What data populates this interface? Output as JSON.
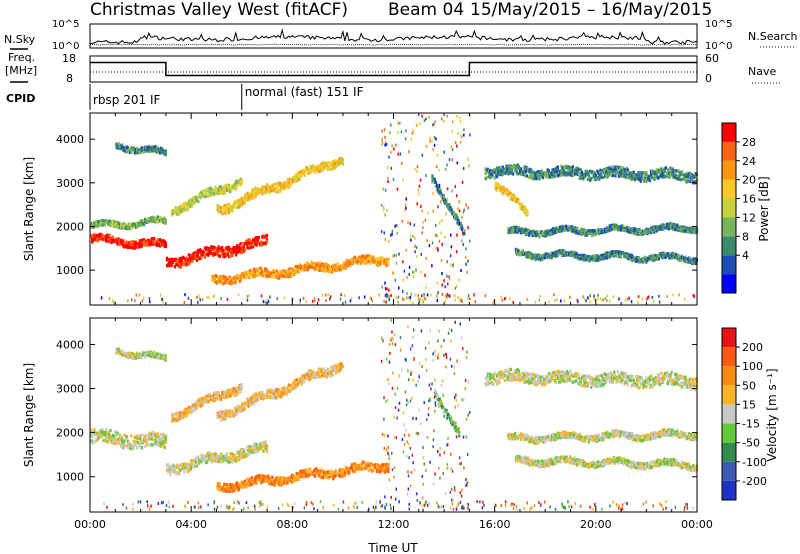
{
  "header": {
    "title_site": "Christmas Valley West (fitACF)",
    "title_beam": "Beam 04",
    "title_dates": "15/May/2015 – 16/May/2015"
  },
  "strip_nsky": {
    "label": "N.Sky",
    "left_ticks": [
      "10^5",
      "10^0"
    ],
    "right_ticks": [
      "10^5",
      "10^0"
    ],
    "right_label": "N.Search"
  },
  "strip_freq": {
    "label_line1": "Freq.",
    "label_line2": "[MHz]",
    "left_ticks": [
      "18",
      "8"
    ],
    "right_ticks": [
      "60",
      "0"
    ],
    "right_label": "Nave",
    "segments_mhz": [
      {
        "from": 0,
        "to": 3,
        "value": 15.5
      },
      {
        "from": 3,
        "to": 15,
        "value": 10.5
      },
      {
        "from": 15,
        "to": 24,
        "value": 15.5
      }
    ]
  },
  "cpid": {
    "label": "CPID",
    "modes": [
      {
        "start_hour": 0,
        "text": "rbsp 201 IF"
      },
      {
        "start_hour": 6,
        "text": "normal (fast) 151 IF"
      }
    ]
  },
  "chart_data": [
    {
      "type": "heatmap",
      "quantity": "power",
      "ylabel": "Slant Range [km]",
      "xlabel": "",
      "ylim": [
        200,
        4600
      ],
      "yticks": [
        1000,
        2000,
        3000,
        4000
      ],
      "xlim": [
        0,
        24
      ],
      "colorbar": {
        "label": "Power [dB]",
        "ticks": [
          "4",
          "8",
          "12",
          "16",
          "20",
          "24",
          "28"
        ],
        "colors": [
          "#0000ff",
          "#1d4db8",
          "#3c8c6c",
          "#78b45c",
          "#c8d23c",
          "#fac828",
          "#fa9614",
          "#fa6414",
          "#ff0000"
        ]
      },
      "echo_bands": [
        {
          "t0": 0.0,
          "t1": 3.0,
          "r0": 1750,
          "r1": 1600,
          "w": 160,
          "level": 8
        },
        {
          "t0": 0.0,
          "t1": 3.0,
          "r0": 2050,
          "r1": 2150,
          "w": 120,
          "level": 3
        },
        {
          "t0": 3.0,
          "t1": 7.0,
          "r0": 1200,
          "r1": 1700,
          "w": 220,
          "level": 8
        },
        {
          "t0": 3.2,
          "t1": 6.0,
          "r0": 2400,
          "r1": 3100,
          "w": 180,
          "level": 4
        },
        {
          "t0": 5.0,
          "t1": 10.0,
          "r0": 2400,
          "r1": 3600,
          "w": 200,
          "level": 5
        },
        {
          "t0": 4.8,
          "t1": 11.8,
          "r0": 800,
          "r1": 1300,
          "w": 180,
          "level": 6
        },
        {
          "t0": 1.0,
          "t1": 3.0,
          "r0": 3900,
          "r1": 3700,
          "w": 120,
          "level": 2
        },
        {
          "t0": 13.5,
          "t1": 14.8,
          "r0": 3200,
          "r1": 1800,
          "w": 140,
          "level": 2
        },
        {
          "t0": 15.6,
          "t1": 24.0,
          "r0": 3300,
          "r1": 3200,
          "w": 220,
          "level": 2
        },
        {
          "t0": 16.0,
          "t1": 17.3,
          "r0": 3000,
          "r1": 2300,
          "w": 160,
          "level": 5
        },
        {
          "t0": 16.5,
          "t1": 24.0,
          "r0": 1900,
          "r1": 2000,
          "w": 120,
          "level": 2
        },
        {
          "t0": 16.8,
          "t1": 24.0,
          "r0": 1400,
          "r1": 1300,
          "w": 120,
          "level": 2
        }
      ]
    },
    {
      "type": "heatmap",
      "quantity": "velocity",
      "ylabel": "Slant Range [km]",
      "xlabel": "Time UT",
      "ylim": [
        200,
        4600
      ],
      "yticks": [
        1000,
        2000,
        3000,
        4000
      ],
      "xlim": [
        0,
        24
      ],
      "xticks": [
        "00:00",
        "04:00",
        "08:00",
        "12:00",
        "16:00",
        "20:00",
        "00:00"
      ],
      "colorbar": {
        "label": "Velocity [m s⁻¹]",
        "ticks": [
          "200",
          "100",
          "50",
          "15",
          "-15",
          "-50",
          "-100",
          "-200"
        ],
        "colors": [
          "#1e32c8",
          "#3c5ab4",
          "#328c50",
          "#64c83c",
          "#c8c8c8",
          "#fab428",
          "#fa8c14",
          "#fa5a14",
          "#e61414"
        ]
      },
      "echo_bands": [
        {
          "t0": 0.0,
          "t1": 3.0,
          "r0": 1950,
          "r1": 1800,
          "w": 300,
          "level": 4
        },
        {
          "t0": 3.0,
          "t1": 7.0,
          "r0": 1200,
          "r1": 1700,
          "w": 220,
          "level": 4
        },
        {
          "t0": 5.0,
          "t1": 10.0,
          "r0": 2400,
          "r1": 3600,
          "w": 200,
          "level": 5
        },
        {
          "t0": 3.2,
          "t1": 6.0,
          "r0": 2400,
          "r1": 3100,
          "w": 180,
          "level": 5
        },
        {
          "t0": 5.0,
          "t1": 11.8,
          "r0": 800,
          "r1": 1300,
          "w": 180,
          "level": 6
        },
        {
          "t0": 1.0,
          "t1": 3.0,
          "r0": 3900,
          "r1": 3700,
          "w": 120,
          "level": 4
        },
        {
          "t0": 13.6,
          "t1": 14.6,
          "r0": 3000,
          "r1": 1900,
          "w": 120,
          "level": 3
        },
        {
          "t0": 15.6,
          "t1": 24.0,
          "r0": 3300,
          "r1": 3200,
          "w": 260,
          "level": 4
        },
        {
          "t0": 16.5,
          "t1": 24.0,
          "r0": 1900,
          "r1": 2000,
          "w": 140,
          "level": 4
        },
        {
          "t0": 16.8,
          "t1": 24.0,
          "r0": 1400,
          "r1": 1300,
          "w": 140,
          "level": 4
        }
      ]
    }
  ]
}
